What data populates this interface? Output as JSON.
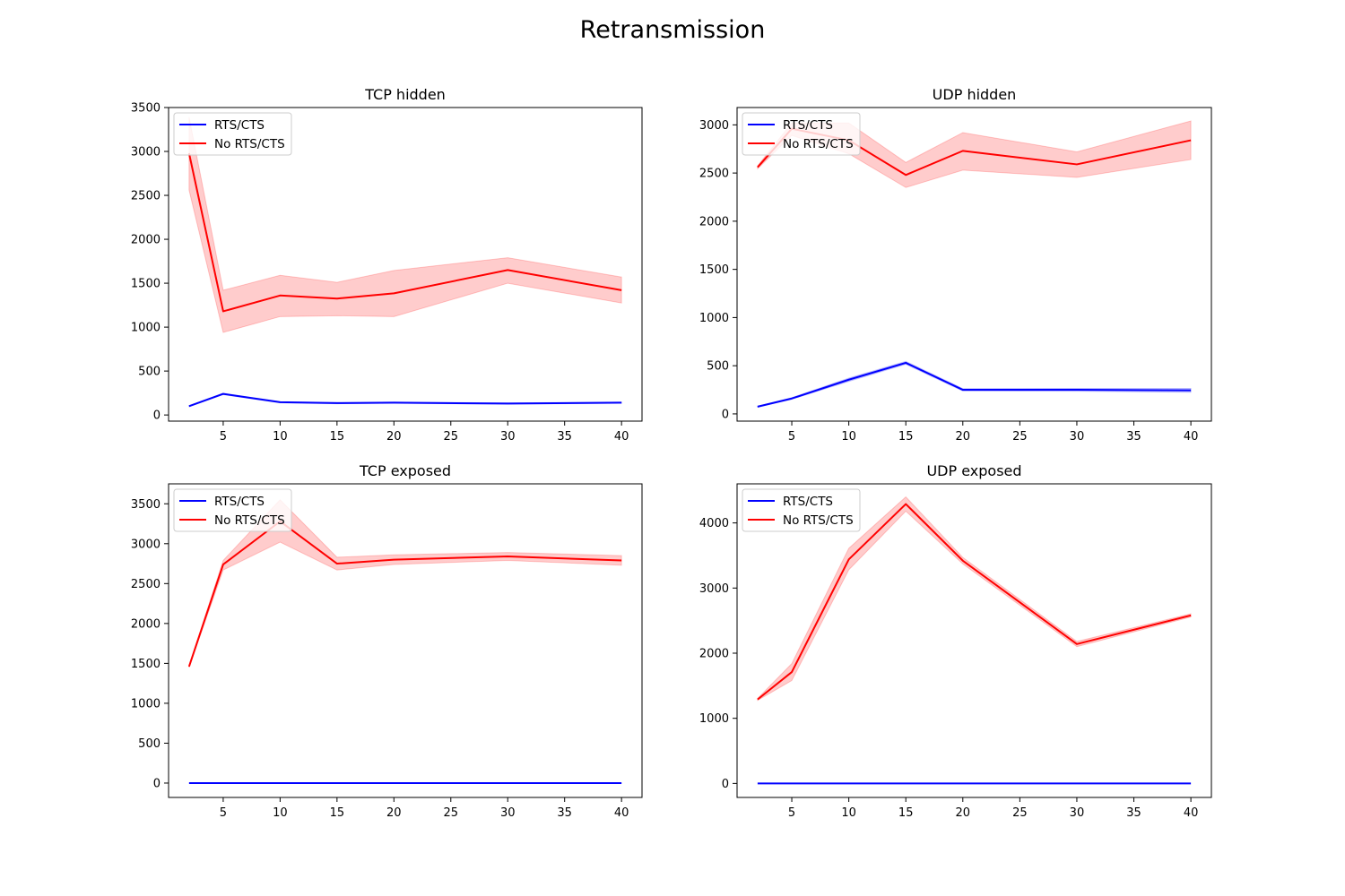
{
  "figure": {
    "title": "Retransmission"
  },
  "colors": {
    "rts": "#0000ff",
    "no_rts": "#ff0000",
    "no_rts_band": "#ff9999",
    "rts_band": "#9999ff"
  },
  "chart_data": [
    {
      "type": "line",
      "title": "TCP hidden",
      "xlabel": "",
      "ylabel": "",
      "x": [
        2,
        5,
        10,
        15,
        20,
        30,
        40
      ],
      "xlim": [
        0.2,
        41.8
      ],
      "ylim": [
        -70,
        3500
      ],
      "xticks": [
        5,
        10,
        15,
        20,
        25,
        30,
        35,
        40
      ],
      "yticks": [
        0,
        500,
        1000,
        1500,
        2000,
        2500,
        3000,
        3500
      ],
      "legend": "top-left",
      "series": [
        {
          "name": "RTS/CTS",
          "color": "#0000ff",
          "values": [
            100,
            240,
            145,
            135,
            140,
            130,
            140
          ],
          "lower": [
            95,
            232,
            138,
            128,
            133,
            123,
            133
          ],
          "upper": [
            105,
            248,
            152,
            142,
            147,
            137,
            147
          ]
        },
        {
          "name": "No RTS/CTS",
          "color": "#ff0000",
          "values": [
            2980,
            1180,
            1360,
            1325,
            1385,
            1650,
            1420
          ],
          "lower": [
            2560,
            940,
            1120,
            1130,
            1120,
            1500,
            1275
          ],
          "upper": [
            3390,
            1420,
            1590,
            1510,
            1645,
            1790,
            1570
          ]
        }
      ]
    },
    {
      "type": "line",
      "title": "UDP hidden",
      "xlabel": "",
      "ylabel": "",
      "x": [
        2,
        5,
        10,
        15,
        20,
        30,
        40
      ],
      "xlim": [
        0.2,
        41.8
      ],
      "ylim": [
        -75,
        3180
      ],
      "xticks": [
        5,
        10,
        15,
        20,
        25,
        30,
        35,
        40
      ],
      "yticks": [
        0,
        500,
        1000,
        1500,
        2000,
        2500,
        3000
      ],
      "legend": "top-left",
      "series": [
        {
          "name": "RTS/CTS",
          "color": "#0000ff",
          "values": [
            75,
            160,
            355,
            530,
            250,
            250,
            245
          ],
          "lower": [
            70,
            152,
            338,
            515,
            238,
            235,
            225
          ],
          "upper": [
            80,
            168,
            372,
            545,
            262,
            265,
            265
          ]
        },
        {
          "name": "No RTS/CTS",
          "color": "#ff0000",
          "values": [
            2560,
            2960,
            2840,
            2480,
            2730,
            2590,
            2840
          ],
          "lower": [
            2545,
            2890,
            2700,
            2350,
            2530,
            2455,
            2640
          ],
          "upper": [
            2575,
            3020,
            3020,
            2610,
            2920,
            2720,
            3040
          ]
        }
      ]
    },
    {
      "type": "line",
      "title": "TCP exposed",
      "xlabel": "",
      "ylabel": "",
      "x": [
        2,
        5,
        10,
        15,
        20,
        30,
        40
      ],
      "xlim": [
        0.2,
        41.8
      ],
      "ylim": [
        -180,
        3750
      ],
      "xticks": [
        5,
        10,
        15,
        20,
        25,
        30,
        35,
        40
      ],
      "yticks": [
        0,
        500,
        1000,
        1500,
        2000,
        2500,
        3000,
        3500
      ],
      "legend": "top-left",
      "series": [
        {
          "name": "RTS/CTS",
          "color": "#0000ff",
          "values": [
            0,
            0,
            0,
            0,
            0,
            0,
            0
          ]
        },
        {
          "name": "No RTS/CTS",
          "color": "#ff0000",
          "values": [
            1460,
            2740,
            3280,
            2750,
            2800,
            2840,
            2790
          ],
          "lower": [
            1450,
            2670,
            3020,
            2670,
            2740,
            2790,
            2730
          ],
          "upper": [
            1470,
            2790,
            3550,
            2830,
            2860,
            2890,
            2850
          ]
        }
      ]
    },
    {
      "type": "line",
      "title": "UDP exposed",
      "xlabel": "",
      "ylabel": "",
      "x": [
        2,
        5,
        10,
        15,
        20,
        30,
        40
      ],
      "xlim": [
        0.2,
        41.8
      ],
      "ylim": [
        -215,
        4600
      ],
      "xticks": [
        5,
        10,
        15,
        20,
        25,
        30,
        35,
        40
      ],
      "yticks": [
        0,
        1000,
        2000,
        3000,
        4000
      ],
      "legend": "top-left",
      "series": [
        {
          "name": "RTS/CTS",
          "color": "#0000ff",
          "values": [
            0,
            0,
            0,
            0,
            0,
            0,
            0
          ]
        },
        {
          "name": "No RTS/CTS",
          "color": "#ff0000",
          "values": [
            1290,
            1710,
            3440,
            4290,
            3420,
            2140,
            2580
          ],
          "lower": [
            1275,
            1580,
            3280,
            4180,
            3370,
            2100,
            2555
          ],
          "upper": [
            1305,
            1840,
            3610,
            4400,
            3470,
            2180,
            2605
          ]
        }
      ]
    }
  ]
}
